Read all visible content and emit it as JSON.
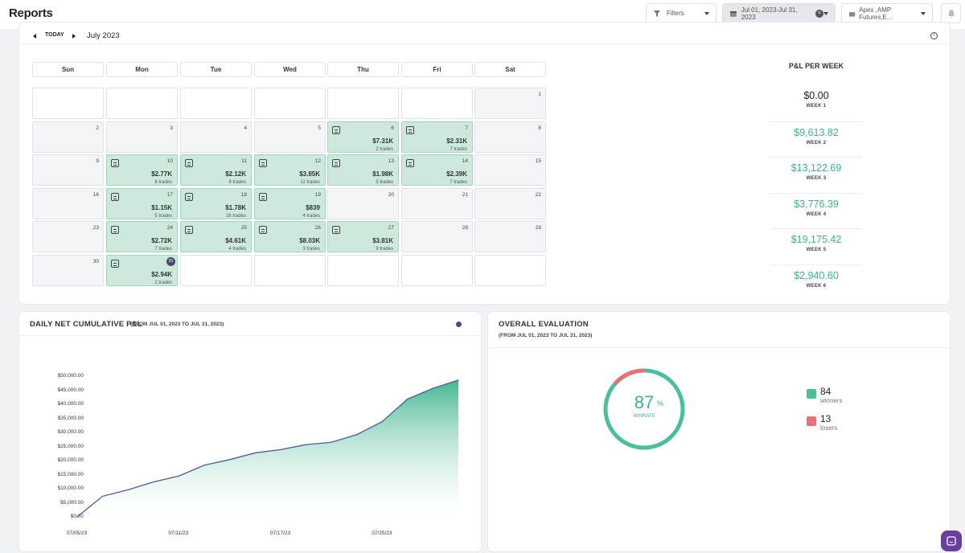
{
  "header": {
    "title": "Reports",
    "filters_label": "Filters",
    "date_range": "Jul 01, 2023-Jul 31, 2023",
    "account": "Apex ,AMP Futures,E..."
  },
  "calendar": {
    "today_label": "TODAY",
    "month_label": "July 2023",
    "days": [
      "Sun",
      "Mon",
      "Tue",
      "Wed",
      "Thu",
      "Fri",
      "Sat"
    ],
    "cells": [
      {
        "d": "",
        "t": "",
        "p": "",
        "n": ""
      },
      {
        "d": "",
        "t": "",
        "p": "",
        "n": ""
      },
      {
        "d": "",
        "t": "",
        "p": "",
        "n": ""
      },
      {
        "d": "",
        "t": "",
        "p": "",
        "n": ""
      },
      {
        "d": "",
        "t": "",
        "p": "",
        "n": ""
      },
      {
        "d": "",
        "t": "",
        "p": "",
        "n": ""
      },
      {
        "d": "1",
        "t": "grey",
        "p": "",
        "n": ""
      },
      {
        "d": "2",
        "t": "grey",
        "p": "",
        "n": ""
      },
      {
        "d": "3",
        "t": "grey",
        "p": "",
        "n": ""
      },
      {
        "d": "4",
        "t": "grey",
        "p": "",
        "n": ""
      },
      {
        "d": "5",
        "t": "grey",
        "p": "",
        "n": ""
      },
      {
        "d": "6",
        "t": "green",
        "p": "$7.31K",
        "n": "2 trades"
      },
      {
        "d": "7",
        "t": "green",
        "p": "$2.31K",
        "n": "7 trades"
      },
      {
        "d": "8",
        "t": "grey",
        "p": "",
        "n": ""
      },
      {
        "d": "9",
        "t": "grey",
        "p": "",
        "n": ""
      },
      {
        "d": "10",
        "t": "green",
        "p": "$2.77K",
        "n": "8 trades"
      },
      {
        "d": "11",
        "t": "green",
        "p": "$2.12K",
        "n": "8 trades"
      },
      {
        "d": "12",
        "t": "green",
        "p": "$3.85K",
        "n": "11 trades"
      },
      {
        "d": "13",
        "t": "green",
        "p": "$1.98K",
        "n": "5 trades"
      },
      {
        "d": "14",
        "t": "green",
        "p": "$2.39K",
        "n": "7 trades"
      },
      {
        "d": "15",
        "t": "grey",
        "p": "",
        "n": ""
      },
      {
        "d": "16",
        "t": "grey",
        "p": "",
        "n": ""
      },
      {
        "d": "17",
        "t": "green",
        "p": "$1.15K",
        "n": "5 trades"
      },
      {
        "d": "18",
        "t": "green",
        "p": "$1.78K",
        "n": "16 trades"
      },
      {
        "d": "19",
        "t": "green",
        "p": "$839",
        "n": "4 trades"
      },
      {
        "d": "20",
        "t": "grey",
        "p": "",
        "n": ""
      },
      {
        "d": "21",
        "t": "grey",
        "p": "",
        "n": ""
      },
      {
        "d": "22",
        "t": "grey",
        "p": "",
        "n": ""
      },
      {
        "d": "23",
        "t": "grey",
        "p": "",
        "n": ""
      },
      {
        "d": "24",
        "t": "green",
        "p": "$2.72K",
        "n": "7 trades"
      },
      {
        "d": "25",
        "t": "green",
        "p": "$4.61K",
        "n": "4 trades"
      },
      {
        "d": "26",
        "t": "green",
        "p": "$8.03K",
        "n": "3 trades"
      },
      {
        "d": "27",
        "t": "green",
        "p": "$3.81K",
        "n": "9 trades"
      },
      {
        "d": "28",
        "t": "grey",
        "p": "",
        "n": ""
      },
      {
        "d": "29",
        "t": "grey",
        "p": "",
        "n": ""
      },
      {
        "d": "30",
        "t": "grey",
        "p": "",
        "n": ""
      },
      {
        "d": "31",
        "t": "green today",
        "p": "$2.94K",
        "n": "2 trades"
      },
      {
        "d": "",
        "t": "",
        "p": "",
        "n": ""
      },
      {
        "d": "",
        "t": "",
        "p": "",
        "n": ""
      },
      {
        "d": "",
        "t": "",
        "p": "",
        "n": ""
      },
      {
        "d": "",
        "t": "",
        "p": "",
        "n": ""
      },
      {
        "d": "",
        "t": "",
        "p": "",
        "n": ""
      }
    ]
  },
  "weekly": {
    "title": "P&L PER WEEK",
    "weeks": [
      {
        "value": "$0.00",
        "label": "WEEK 1"
      },
      {
        "value": "$9,613.82",
        "label": "WEEK 2"
      },
      {
        "value": "$13,122.69",
        "label": "WEEK 3"
      },
      {
        "value": "$3,776.39",
        "label": "WEEK 4"
      },
      {
        "value": "$19,175.42",
        "label": "WEEK 5"
      },
      {
        "value": "$2,940.60",
        "label": "WEEK 6"
      }
    ]
  },
  "cumulative": {
    "title": "DAILY NET CUMULATIVE P&L",
    "range": "(FROM JUL 01, 2023 TO JUL 31, 2023)"
  },
  "evaluation": {
    "title": "OVERALL EVALUATION",
    "range": "(FROM JUL 01, 2023 TO JUL 31, 2023)",
    "winrate": "87",
    "pct": "%",
    "winrate_label": "WINRATE",
    "winners": "84",
    "winners_label": "winners",
    "losers": "13",
    "losers_label": "losers",
    "win_color": "#4dbf98",
    "loss_color": "#e8707a"
  },
  "chart_data": {
    "type": "area",
    "x": [
      "07/05/23",
      "07/06/23",
      "07/07/23",
      "07/10/23",
      "07/11/23",
      "07/12/23",
      "07/13/23",
      "07/14/23",
      "07/17/23",
      "07/18/23",
      "07/19/23",
      "07/24/23",
      "07/25/23",
      "07/26/23",
      "07/27/23",
      "07/31/23"
    ],
    "values": [
      0,
      7310,
      9620,
      12390,
      14510,
      18360,
      20340,
      22730,
      23880,
      25660,
      26500,
      29220,
      33830,
      41860,
      45670,
      48610
    ],
    "yticks": [
      "$0.00",
      "$5,000.00",
      "$10,000.00",
      "$15,000.00",
      "$20,000.00",
      "$25,000.00",
      "$30,000.00",
      "$35,000.00",
      "$40,000.00",
      "$45,000.00",
      "$50,000.00"
    ],
    "xticks": [
      "07/05/23",
      "07/11/23",
      "07/17/23",
      "07/25/23"
    ],
    "ylim": [
      0,
      50000
    ],
    "colors": {
      "line": "#4a5d9a",
      "fill_top": "#3bb38a",
      "fill_bottom": "#ffffff"
    }
  }
}
